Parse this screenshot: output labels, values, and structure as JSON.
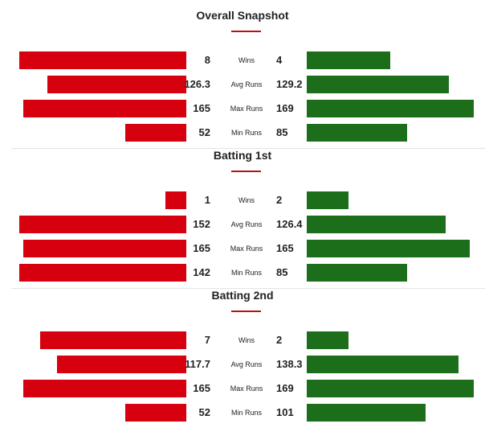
{
  "colors": {
    "left": "#d6000f",
    "right": "#1c6e1b",
    "accent": "#b5121b"
  },
  "scale_max": 169,
  "sections": [
    {
      "title": "Overall Snapshot",
      "rows": [
        {
          "label": "Wins",
          "left": 8,
          "right": 4,
          "left_text": "8",
          "right_text": "4"
        },
        {
          "label": "Avg Runs",
          "left": 126.3,
          "right": 129.2,
          "left_text": "126.3",
          "right_text": "129.2"
        },
        {
          "label": "Max Runs",
          "left": 165,
          "right": 169,
          "left_text": "165",
          "right_text": "169"
        },
        {
          "label": "Min Runs",
          "left": 52,
          "right": 85,
          "left_text": "52",
          "right_text": "85"
        }
      ]
    },
    {
      "title": "Batting 1st",
      "rows": [
        {
          "label": "Wins",
          "left": 1,
          "right": 2,
          "left_text": "1",
          "right_text": "2"
        },
        {
          "label": "Avg Runs",
          "left": 152,
          "right": 126.4,
          "left_text": "152",
          "right_text": "126.4"
        },
        {
          "label": "Max Runs",
          "left": 165,
          "right": 165,
          "left_text": "165",
          "right_text": "165"
        },
        {
          "label": "Min Runs",
          "left": 142,
          "right": 85,
          "left_text": "142",
          "right_text": "85"
        }
      ]
    },
    {
      "title": "Batting 2nd",
      "rows": [
        {
          "label": "Wins",
          "left": 7,
          "right": 2,
          "left_text": "7",
          "right_text": "2"
        },
        {
          "label": "Avg Runs",
          "left": 117.7,
          "right": 138.3,
          "left_text": "117.7",
          "right_text": "138.3"
        },
        {
          "label": "Max Runs",
          "left": 165,
          "right": 169,
          "left_text": "165",
          "right_text": "169"
        },
        {
          "label": "Min Runs",
          "left": 52,
          "right": 101,
          "left_text": "52",
          "right_text": "101"
        }
      ]
    }
  ]
}
